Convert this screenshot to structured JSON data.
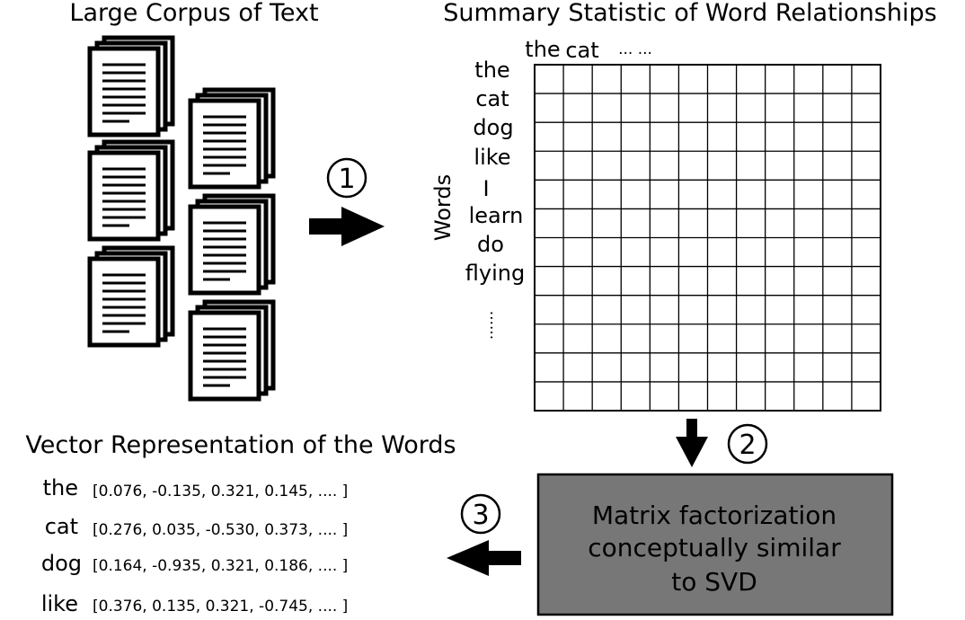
{
  "corpus": {
    "title": "Large Corpus of Text",
    "stack_count": 6
  },
  "matrix": {
    "title": "Summary Statistic of Word Relationships",
    "axis_label": "Words",
    "column_headers": [
      "the",
      "cat",
      "... ..."
    ],
    "row_labels": [
      "the",
      "cat",
      "dog",
      "like",
      "I",
      "learn",
      "do",
      "flying"
    ],
    "row_ellipsis": "......",
    "rows": 12,
    "cols": 12
  },
  "steps": {
    "one": "1",
    "two": "2",
    "three": "3"
  },
  "factorization": {
    "lines": [
      "Matrix factorization",
      "conceptually similar",
      "to SVD"
    ],
    "fill_color": "#777777"
  },
  "vectors": {
    "title": "Vector Representation of the Words",
    "items": [
      {
        "word": "the",
        "vector": "[0.076, -0.135, 0.321, 0.145, .... ]"
      },
      {
        "word": "cat",
        "vector": "[0.276, 0.035, -0.530, 0.373, .... ]"
      },
      {
        "word": "dog",
        "vector": "[0.164, -0.935, 0.321, 0.186, .... ]"
      },
      {
        "word": "like",
        "vector": "[0.376, 0.135, 0.321, -0.745, .... ]"
      }
    ]
  }
}
